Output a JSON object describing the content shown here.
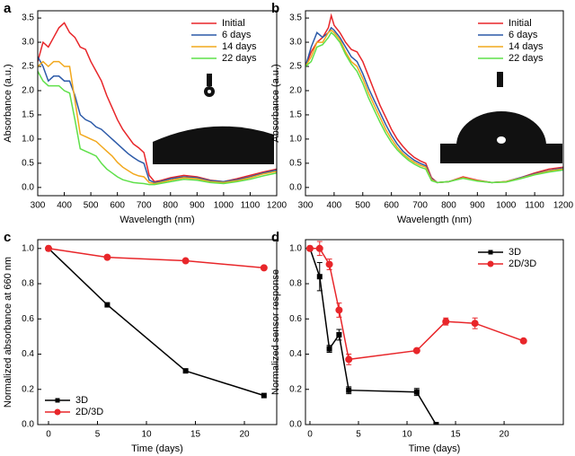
{
  "chart_data": [
    {
      "type": "line",
      "label": "a",
      "xlabel": "Wavelength (nm)",
      "ylabel": "Absorbance (a.u.)",
      "xlim": [
        300,
        1200
      ],
      "xticks": [
        300,
        400,
        500,
        600,
        700,
        800,
        900,
        1000,
        1100,
        1200
      ],
      "ylim": [
        -0.17,
        3.65
      ],
      "yticks": [
        {
          "value": 0,
          "label": "0.0"
        },
        0.5,
        {
          "value": 1,
          "label": "1.0"
        },
        1.5,
        {
          "value": 2,
          "label": "2.0"
        },
        2.5,
        {
          "value": 3,
          "label": "3.0"
        },
        3.5
      ],
      "legend": "upper right",
      "x": [
        300,
        320,
        340,
        360,
        380,
        400,
        420,
        440,
        460,
        480,
        500,
        520,
        540,
        560,
        580,
        600,
        620,
        640,
        660,
        680,
        700,
        720,
        740,
        760,
        800,
        850,
        900,
        950,
        1000,
        1050,
        1100,
        1150,
        1200
      ],
      "series": [
        {
          "name": "Initial",
          "color": "#e8262a",
          "values": [
            2.6,
            3.0,
            2.9,
            3.1,
            3.3,
            3.4,
            3.2,
            3.1,
            2.9,
            2.85,
            2.6,
            2.4,
            2.2,
            1.9,
            1.65,
            1.4,
            1.2,
            1.05,
            0.9,
            0.82,
            0.72,
            0.25,
            0.12,
            0.14,
            0.2,
            0.25,
            0.22,
            0.15,
            0.12,
            0.18,
            0.25,
            0.32,
            0.38
          ]
        },
        {
          "name": "6 days",
          "color": "#2c5aa8",
          "values": [
            2.7,
            2.5,
            2.2,
            2.3,
            2.3,
            2.2,
            2.2,
            1.9,
            1.5,
            1.4,
            1.35,
            1.25,
            1.2,
            1.1,
            1.0,
            0.9,
            0.8,
            0.7,
            0.62,
            0.55,
            0.5,
            0.15,
            0.1,
            0.12,
            0.18,
            0.22,
            0.2,
            0.14,
            0.12,
            0.16,
            0.22,
            0.3,
            0.36
          ]
        },
        {
          "name": "14 days",
          "color": "#f2a81d",
          "values": [
            2.5,
            2.6,
            2.5,
            2.6,
            2.6,
            2.5,
            2.5,
            1.8,
            1.1,
            1.05,
            1.0,
            0.95,
            0.85,
            0.75,
            0.65,
            0.52,
            0.42,
            0.35,
            0.28,
            0.24,
            0.22,
            0.1,
            0.08,
            0.1,
            0.15,
            0.2,
            0.18,
            0.12,
            0.1,
            0.14,
            0.2,
            0.28,
            0.33
          ]
        },
        {
          "name": "22 days",
          "color": "#5fe04a",
          "values": [
            2.4,
            2.2,
            2.1,
            2.1,
            2.1,
            2.0,
            1.95,
            1.4,
            0.8,
            0.75,
            0.7,
            0.65,
            0.5,
            0.38,
            0.3,
            0.22,
            0.16,
            0.13,
            0.1,
            0.09,
            0.08,
            0.06,
            0.06,
            0.08,
            0.12,
            0.17,
            0.15,
            0.1,
            0.08,
            0.12,
            0.17,
            0.24,
            0.3
          ]
        }
      ]
    },
    {
      "type": "line",
      "label": "b",
      "xlabel": "Wavelength (nm)",
      "ylabel": "Absorbance (a.u.)",
      "xlim": [
        300,
        1200
      ],
      "xticks": [
        300,
        400,
        500,
        600,
        700,
        800,
        900,
        1000,
        1100,
        1200
      ],
      "ylim": [
        -0.17,
        3.65
      ],
      "yticks": [
        {
          "value": 0,
          "label": "0.0"
        },
        0.5,
        {
          "value": 1,
          "label": "1.0"
        },
        1.5,
        {
          "value": 2,
          "label": "2.0"
        },
        2.5,
        {
          "value": 3,
          "label": "3.0"
        },
        3.5
      ],
      "legend": "upper right",
      "x": [
        300,
        320,
        340,
        360,
        380,
        390,
        400,
        420,
        440,
        460,
        480,
        500,
        520,
        540,
        560,
        580,
        600,
        620,
        640,
        660,
        680,
        700,
        720,
        740,
        760,
        800,
        850,
        900,
        950,
        1000,
        1050,
        1100,
        1150,
        1200
      ],
      "series": [
        {
          "name": "Initial",
          "color": "#e8262a",
          "values": [
            2.5,
            2.8,
            3.0,
            3.1,
            3.3,
            3.55,
            3.35,
            3.2,
            3.0,
            2.85,
            2.8,
            2.6,
            2.3,
            2.0,
            1.7,
            1.45,
            1.2,
            1.0,
            0.85,
            0.72,
            0.62,
            0.55,
            0.5,
            0.2,
            0.1,
            0.12,
            0.22,
            0.15,
            0.1,
            0.12,
            0.2,
            0.3,
            0.38,
            0.42
          ]
        },
        {
          "name": "6 days",
          "color": "#2c5aa8",
          "values": [
            2.5,
            2.9,
            3.2,
            3.1,
            3.2,
            3.3,
            3.25,
            3.1,
            2.9,
            2.7,
            2.6,
            2.35,
            2.05,
            1.8,
            1.55,
            1.3,
            1.08,
            0.9,
            0.75,
            0.65,
            0.56,
            0.5,
            0.45,
            0.18,
            0.1,
            0.12,
            0.2,
            0.14,
            0.1,
            0.12,
            0.2,
            0.28,
            0.35,
            0.4
          ]
        },
        {
          "name": "14 days",
          "color": "#f2a81d",
          "values": [
            2.5,
            2.7,
            3.0,
            3.0,
            3.2,
            3.25,
            3.2,
            3.05,
            2.8,
            2.6,
            2.5,
            2.25,
            1.95,
            1.7,
            1.45,
            1.2,
            1.0,
            0.83,
            0.7,
            0.6,
            0.52,
            0.46,
            0.42,
            0.16,
            0.1,
            0.12,
            0.2,
            0.14,
            0.1,
            0.12,
            0.19,
            0.27,
            0.34,
            0.38
          ]
        },
        {
          "name": "22 days",
          "color": "#5fe04a",
          "values": [
            2.5,
            2.6,
            2.9,
            2.95,
            3.1,
            3.2,
            3.15,
            3.0,
            2.75,
            2.55,
            2.4,
            2.15,
            1.85,
            1.6,
            1.35,
            1.12,
            0.93,
            0.78,
            0.66,
            0.56,
            0.48,
            0.42,
            0.38,
            0.14,
            0.1,
            0.12,
            0.19,
            0.13,
            0.1,
            0.11,
            0.18,
            0.26,
            0.32,
            0.36
          ]
        }
      ]
    },
    {
      "type": "line",
      "label": "c",
      "xlabel": "Time (days)",
      "ylabel": "Normalized absorbance at 660 nm",
      "xlim": [
        -1.1,
        23.3
      ],
      "xticks": [
        0,
        5,
        10,
        15,
        20
      ],
      "ylim": [
        0,
        1.05
      ],
      "yticks": [
        {
          "value": 0,
          "label": "0.0"
        },
        0.2,
        0.4,
        0.6,
        0.8,
        {
          "value": 1,
          "label": "1.0"
        }
      ],
      "legend": "lower left",
      "series": [
        {
          "name": "3D",
          "color": "#000000",
          "marker": "square",
          "x": [
            0,
            6,
            14,
            22
          ],
          "values": [
            1.0,
            0.68,
            0.305,
            0.165
          ]
        },
        {
          "name": "2D/3D",
          "color": "#e8262a",
          "marker": "circle",
          "x": [
            0,
            6,
            14,
            22
          ],
          "values": [
            1.0,
            0.95,
            0.93,
            0.89
          ]
        }
      ]
    },
    {
      "type": "line",
      "label": "d",
      "xlabel": "Time (days)",
      "ylabel": "Normalized sensor response",
      "xlim": [
        -0.46,
        26.1
      ],
      "xticks": [
        0,
        5,
        10,
        15,
        20
      ],
      "ylim": [
        0,
        1.05
      ],
      "yticks": [
        {
          "value": 0,
          "label": "0.0"
        },
        0.2,
        0.4,
        0.6,
        0.8,
        {
          "value": 1,
          "label": "1.0"
        }
      ],
      "legend": "upper right",
      "series": [
        {
          "name": "3D",
          "color": "#000000",
          "marker": "square",
          "x": [
            0,
            1,
            2,
            3,
            4,
            11,
            13
          ],
          "values": [
            1.0,
            0.84,
            0.43,
            0.51,
            0.195,
            0.185,
            0.0
          ],
          "errors": [
            0.01,
            0.08,
            0.02,
            0.03,
            0.02,
            0.02,
            0
          ]
        },
        {
          "name": "2D/3D",
          "color": "#e8262a",
          "marker": "circle",
          "x": [
            0,
            1,
            2,
            3,
            4,
            11,
            14,
            17,
            22
          ],
          "values": [
            1.0,
            1.0,
            0.91,
            0.65,
            0.37,
            0.42,
            0.585,
            0.575,
            0.475
          ],
          "errors": [
            0.01,
            0.04,
            0.03,
            0.04,
            0.03,
            0.01,
            0.02,
            0.03,
            0.01
          ]
        }
      ]
    }
  ]
}
